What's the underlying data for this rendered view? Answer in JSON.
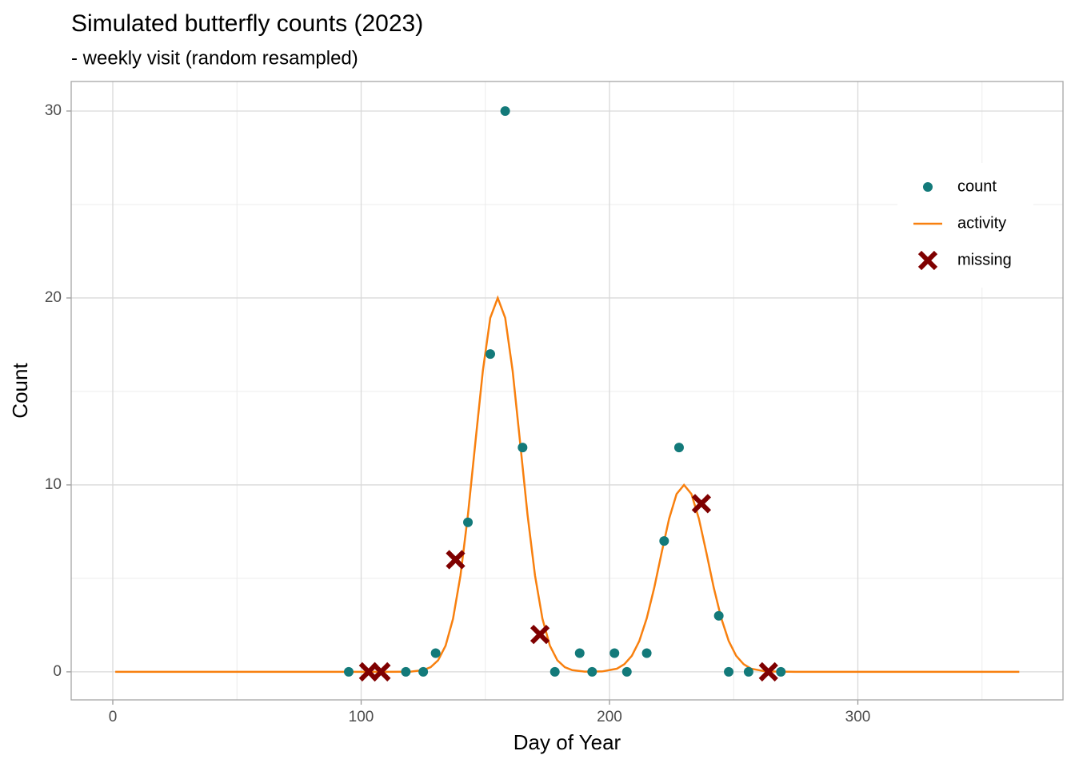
{
  "chart_data": {
    "type": "scatter",
    "title": "Simulated butterfly counts (2023)",
    "subtitle": "- weekly visit (random resampled)",
    "x_label": "Day of Year",
    "y_label": "Count",
    "xlim": [
      -16.75,
      382.6
    ],
    "ylim": [
      -1.5,
      31.58
    ],
    "xticks": [
      0,
      100,
      200,
      300
    ],
    "yticks": [
      0,
      10,
      20,
      30
    ],
    "x_minor_grid": [
      50,
      150,
      250,
      350
    ],
    "y_minor_grid": [
      5,
      15,
      25
    ],
    "grid": true,
    "legend_position": "inside-top-right",
    "series": [
      {
        "name": "count",
        "type": "points",
        "color": "#137a7a",
        "x": [
          95,
          118,
          125,
          130,
          143,
          152,
          158,
          165,
          178,
          188,
          193,
          202,
          207,
          215,
          222,
          228,
          244,
          248,
          256,
          269
        ],
        "values": [
          0,
          0,
          0,
          1,
          8,
          17,
          30,
          12,
          0,
          1,
          0,
          1,
          0,
          1,
          7,
          12,
          3,
          0,
          0,
          0
        ]
      },
      {
        "name": "activity",
        "type": "line",
        "color": "#f8800f",
        "x": [
          1,
          110,
          120,
          125,
          128,
          131,
          134,
          137,
          140,
          143,
          146,
          149,
          152,
          155,
          158,
          161,
          164,
          167,
          170,
          173,
          176,
          179,
          182,
          185,
          190,
          197,
          203,
          206,
          209,
          212,
          215,
          218,
          221,
          224,
          227,
          230,
          233,
          236,
          239,
          242,
          245,
          248,
          251,
          254,
          257,
          263,
          275,
          365
        ],
        "values": [
          0,
          0,
          0.01,
          0.09,
          0.25,
          0.62,
          1.4,
          2.84,
          5.16,
          8.4,
          12.28,
          16.1,
          18.94,
          20,
          18.94,
          16.1,
          12.28,
          8.4,
          5.16,
          2.84,
          1.4,
          0.62,
          0.25,
          0.09,
          0.01,
          0.02,
          0.17,
          0.41,
          0.86,
          1.65,
          2.87,
          4.49,
          6.38,
          8.19,
          9.51,
          10,
          9.51,
          8.19,
          6.38,
          4.49,
          2.87,
          1.65,
          0.86,
          0.41,
          0.17,
          0.02,
          0,
          0
        ]
      },
      {
        "name": "missing",
        "type": "cross",
        "color": "#7f0000",
        "x": [
          103,
          108,
          138,
          172,
          237,
          264
        ],
        "values": [
          0,
          0,
          6,
          2,
          9,
          0
        ]
      }
    ]
  }
}
